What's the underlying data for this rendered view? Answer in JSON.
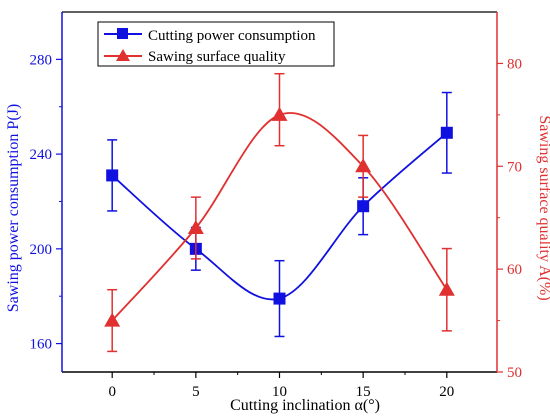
{
  "chart_data": {
    "type": "line",
    "xlabel": "Cutting inclination α(°)",
    "x_ticks": [
      "0",
      "5",
      "10",
      "15",
      "20"
    ],
    "xlim": [
      -3,
      23
    ],
    "y_left": {
      "label": "Sawing power consumption P(J)",
      "ticks": [
        "160",
        "200",
        "240",
        "280"
      ],
      "ylim": [
        148,
        300
      ],
      "color": "#1010e0"
    },
    "y_right": {
      "label": "Sawing surface quality A(%)",
      "ticks": [
        "50",
        "60",
        "70",
        "80"
      ],
      "ylim": [
        50,
        85
      ],
      "color": "#e03030"
    },
    "series": [
      {
        "name": "Cutting power consumption",
        "axis": "left",
        "marker": "square",
        "color": "#1010e0",
        "x": [
          0,
          5,
          10,
          15,
          20
        ],
        "y": [
          231,
          200,
          179,
          218,
          249
        ],
        "err_low": [
          216,
          191,
          163,
          206,
          232
        ],
        "err_high": [
          246,
          209,
          195,
          230,
          266
        ]
      },
      {
        "name": "Sawing surface quality",
        "axis": "right",
        "marker": "triangle",
        "color": "#e03030",
        "x": [
          0,
          5,
          10,
          15,
          20
        ],
        "y": [
          55,
          64,
          75,
          70,
          58
        ],
        "err_low": [
          52,
          61,
          72,
          67,
          54
        ],
        "err_high": [
          58,
          67,
          79,
          73,
          62
        ]
      }
    ],
    "legend_position": "top-left"
  }
}
